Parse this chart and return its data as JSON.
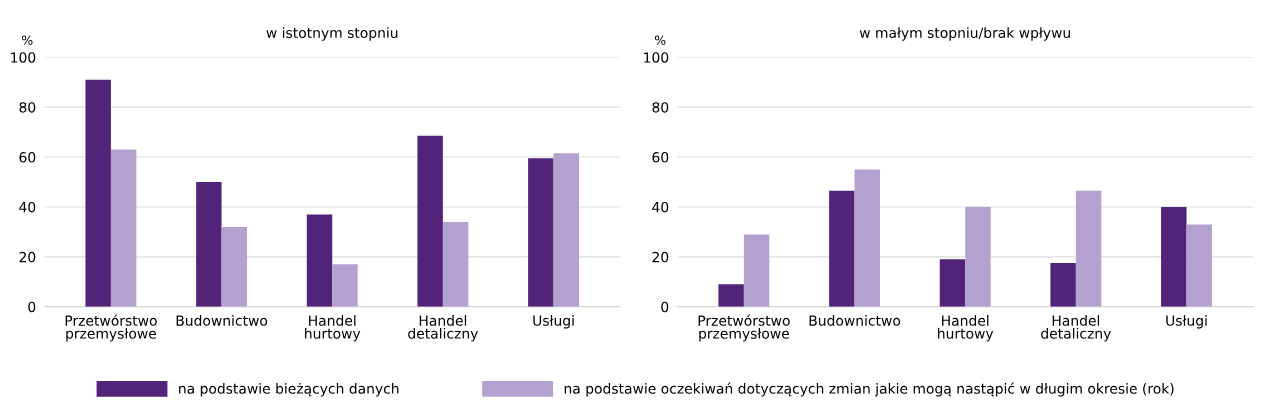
{
  "chart_data": [
    {
      "type": "bar",
      "title": "w istotnym stopniu",
      "ylabel": "%",
      "categories": [
        "Przetwórstwo\nprzemysłowe",
        "Budownictwo",
        "Handel\nhurtowy",
        "Handel\ndetaliczny",
        "Usługi"
      ],
      "series": [
        {
          "name": "na podstawie bieżących danych",
          "color": "#51247a",
          "values": [
            91,
            50,
            37,
            68.5,
            59.5
          ]
        },
        {
          "name": "na podstawie oczekiwań dotyczących zmian jakie mogą nastąpić w długim okresie (rok)",
          "color": "#b3a2cf",
          "values": [
            63,
            32,
            17,
            34,
            61.5
          ]
        }
      ],
      "ylim": [
        0,
        100
      ],
      "yticks": [
        0,
        20,
        40,
        60,
        80,
        100
      ],
      "grid": "y",
      "legend": "bottom"
    },
    {
      "type": "bar",
      "title": "w małym stopniu/brak wpływu",
      "ylabel": "%",
      "categories": [
        "Przetwórstwo\nprzemysłowe",
        "Budownictwo",
        "Handel\nhurtowy",
        "Handel\ndetaliczny",
        "Usługi"
      ],
      "series": [
        {
          "color": "#51247a",
          "values": [
            9,
            46.5,
            19,
            17.5,
            40
          ]
        },
        {
          "color": "#b3a2cf",
          "values": [
            29,
            55,
            40,
            46.5,
            33
          ]
        }
      ],
      "ylim": [
        0,
        100
      ],
      "yticks": [
        0,
        20,
        40,
        60,
        80,
        100
      ],
      "grid": "y"
    }
  ]
}
